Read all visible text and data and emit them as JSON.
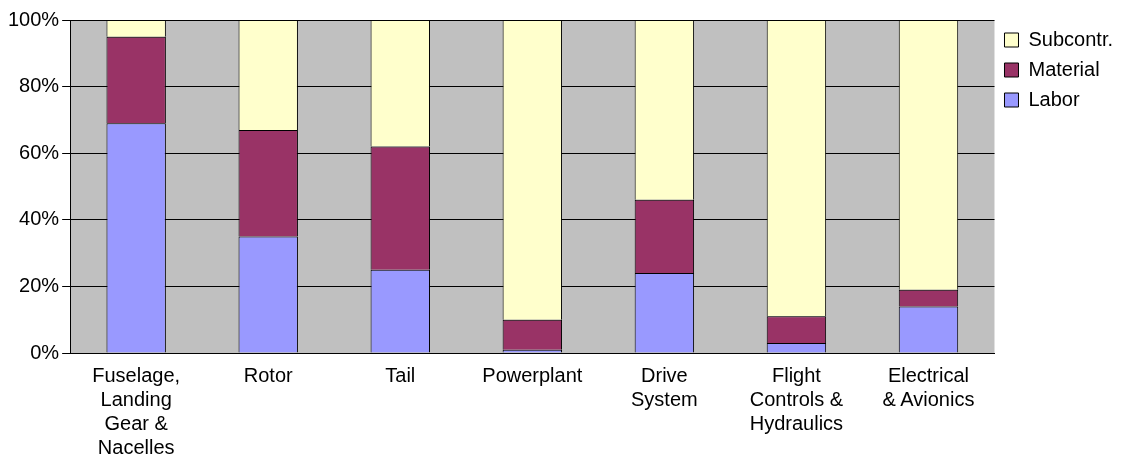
{
  "chart_data": {
    "type": "bar",
    "stacked": true,
    "categories": [
      "Fuselage, Landing Gear & Nacelles",
      "Rotor",
      "Tail",
      "Powerplant",
      "Drive System",
      "Flight Controls & Hydraulics",
      "Electrical & Avionics"
    ],
    "series": [
      {
        "name": "Labor",
        "color": "#9999ff",
        "values": [
          69,
          35,
          25,
          1,
          24,
          3,
          14
        ]
      },
      {
        "name": "Material",
        "color": "#993366",
        "values": [
          26,
          32,
          37,
          9,
          22,
          8,
          5
        ]
      },
      {
        "name": "Subcontr.",
        "color": "#ffffcc",
        "values": [
          5,
          33,
          38,
          90,
          54,
          89,
          81
        ]
      }
    ],
    "ylim": [
      0,
      100
    ],
    "yticks": [
      {
        "value": 0,
        "label": "0%"
      },
      {
        "value": 20,
        "label": "20%"
      },
      {
        "value": 40,
        "label": "40%"
      },
      {
        "value": 60,
        "label": "60%"
      },
      {
        "value": 80,
        "label": "80%"
      },
      {
        "value": 100,
        "label": "100%"
      }
    ],
    "grid": "y",
    "legend": "top right"
  }
}
